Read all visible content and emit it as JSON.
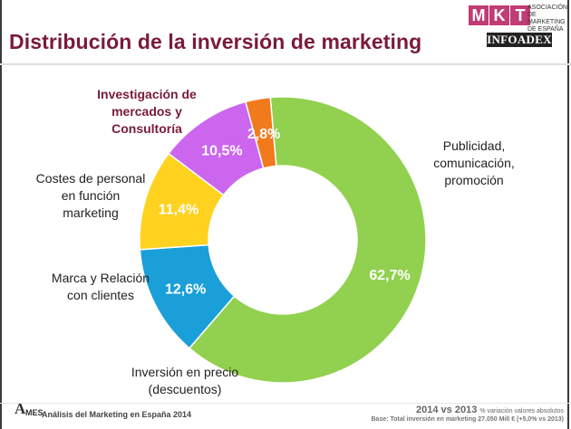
{
  "slide": {
    "title": "Distribución de la inversión de marketing",
    "logos": {
      "mkt_letters": [
        "M",
        "K",
        "T"
      ],
      "mkt_text": [
        "ASOCIACIÓN",
        "DE MARKETING",
        "DE ESPAÑA"
      ],
      "infoadex": "INFOADEX",
      "ames_letters": "AMES"
    },
    "footer": {
      "left": "Análisis del Marketing en España 2014",
      "right_main": "2014 vs 2013",
      "right_note": "% variación valores absolutos",
      "base": "Base: Total inversión en marketing 27.050 Mill € (+5,0% vs 2013)"
    }
  },
  "chart_data": {
    "type": "pie",
    "donut": true,
    "slices": [
      {
        "label": "Publicidad, comunicación, promoción",
        "value": 62.7,
        "value_label": "62,7%",
        "color": "#92d050"
      },
      {
        "label": "Inversión en precio (descuentos)",
        "value": 12.6,
        "value_label": "12,6%",
        "color": "#1b9fd9"
      },
      {
        "label": "Marca y Relación con clientes",
        "value": 11.4,
        "value_label": "11,4%",
        "color": "#ffd21f"
      },
      {
        "label": "Costes de personal en función marketing",
        "value": 10.5,
        "value_label": "10,5%",
        "color": "#cc66ee"
      },
      {
        "label": "Investigación de mercados y Consultoría",
        "value": 2.8,
        "value_label": "2,8%",
        "color": "#f07a1c"
      }
    ],
    "labels": {
      "publicidad": [
        "Publicidad,",
        "comunicación,",
        "promoción"
      ],
      "precio": [
        "Inversión en precio",
        "(descuentos)"
      ],
      "marca": [
        "Marca y Relación",
        "con clientes"
      ],
      "personal": [
        "Costes de personal",
        "en función",
        "marketing"
      ],
      "investigacion": [
        "Investigación de",
        "mercados y",
        "Consultoría"
      ]
    }
  }
}
